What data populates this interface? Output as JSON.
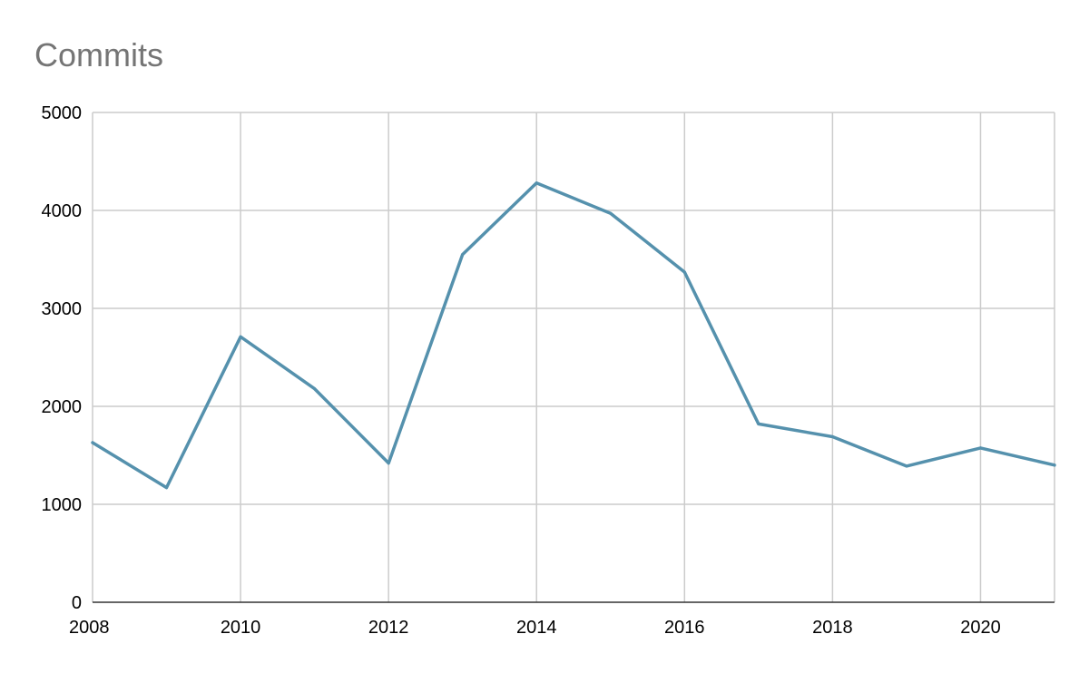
{
  "chart_data": {
    "type": "line",
    "title": "Commits",
    "xlabel": "",
    "ylabel": "",
    "x": [
      2008,
      2009,
      2010,
      2011,
      2012,
      2013,
      2014,
      2015,
      2016,
      2017,
      2018,
      2019,
      2020,
      2021
    ],
    "series": [
      {
        "values": [
          1630,
          1170,
          2710,
          2180,
          1420,
          3550,
          4280,
          3970,
          3370,
          1820,
          1690,
          1390,
          1575,
          1400
        ],
        "color": "#5591ad"
      }
    ],
    "xlim": [
      2008,
      2021
    ],
    "ylim": [
      0,
      5000
    ],
    "x_ticks": [
      "2008",
      "2010",
      "2012",
      "2014",
      "2016",
      "2018",
      "2020"
    ],
    "y_ticks": [
      "0",
      "1000",
      "2000",
      "3000",
      "4000",
      "5000"
    ],
    "grid": true,
    "grid_color": "#cccccc",
    "axis_color": "#333333"
  }
}
